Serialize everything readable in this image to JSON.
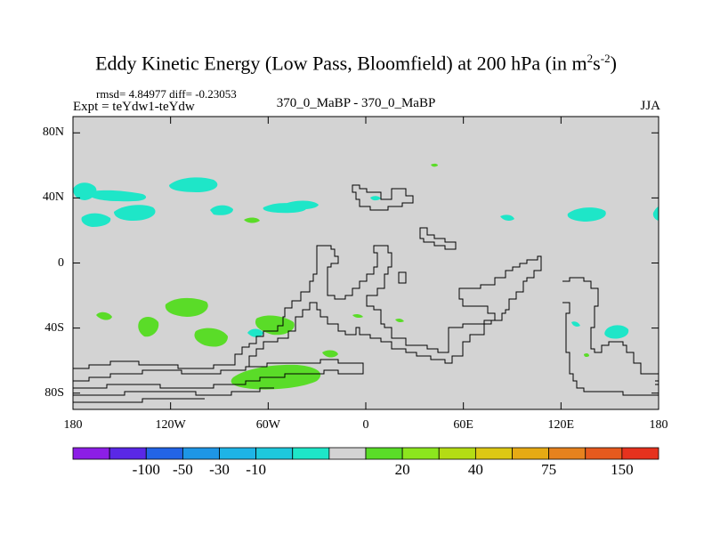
{
  "figure": {
    "title_main": "Eddy Kinetic Energy (Low Pass, Bloomfield) at 200 hPa (in m",
    "title_sup1": "2",
    "title_mid": "s",
    "title_sup2": "-2",
    "title_end": ")",
    "stats": "rmsd= 4.84977 diff= -0.23053",
    "expt_label": "Expt = teYdw1-teYdw",
    "diff_label": "370_0_MaBP - 370_0_MaBP",
    "season": "JJA"
  },
  "map": {
    "lon_range": [
      -180,
      180
    ],
    "lat_range": [
      -90,
      90
    ],
    "background_color": "#d3d3d3",
    "lat_ticks": [
      {
        "label": "80N",
        "value": 80
      },
      {
        "label": "40N",
        "value": 40
      },
      {
        "label": "0",
        "value": 0
      },
      {
        "label": "40S",
        "value": -40
      },
      {
        "label": "80S",
        "value": -80
      }
    ],
    "lon_ticks": [
      {
        "label": "180",
        "value": -180
      },
      {
        "label": "120W",
        "value": -120
      },
      {
        "label": "60W",
        "value": -60
      },
      {
        "label": "0",
        "value": 0
      },
      {
        "label": "60E",
        "value": 60
      },
      {
        "label": "120E",
        "value": 120
      },
      {
        "label": "180",
        "value": 180
      }
    ]
  },
  "colorbar": {
    "colors": [
      "#8c1ee6",
      "#5a28e6",
      "#2364e6",
      "#1e96e6",
      "#1eb4e6",
      "#1ec8dc",
      "#1ee6c8",
      "#d3d3d3",
      "#5adc28",
      "#8ce61e",
      "#b4dc14",
      "#dcc814",
      "#e6aa14",
      "#e6821e",
      "#e65a1e",
      "#e6321e"
    ],
    "labels": [
      {
        "text": "-100",
        "boundary": 2
      },
      {
        "text": "-50",
        "boundary": 3
      },
      {
        "text": "-30",
        "boundary": 4
      },
      {
        "text": "-10",
        "boundary": 5
      },
      {
        "text": "20",
        "boundary": 9
      },
      {
        "text": "40",
        "boundary": 11
      },
      {
        "text": "75",
        "boundary": 13
      },
      {
        "text": "150",
        "boundary": 15
      }
    ]
  },
  "contours": {
    "cyan_color": "#1ee6c8",
    "green_color": "#5adc28"
  }
}
